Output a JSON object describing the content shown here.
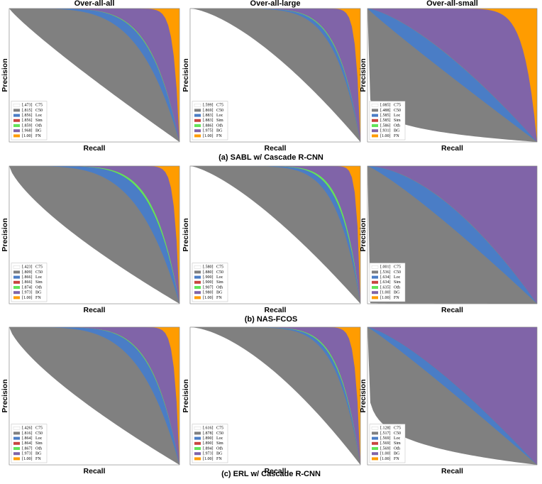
{
  "chart_data": [
    {
      "type": "area",
      "title": "Over-all-all",
      "xlabel": "Recall",
      "ylabel": "Precision",
      "series": [
        {
          "name": "C75",
          "color": "#ffffff",
          "values": [
            0.473
          ],
          "value_labels": [
            "[.473]"
          ]
        },
        {
          "name": "C50",
          "color": "#808080",
          "values": [
            0.815
          ],
          "value_labels": [
            "[.815]"
          ]
        },
        {
          "name": "Loc",
          "color": "#4a7dc6",
          "values": [
            0.856
          ],
          "value_labels": [
            "[.856]"
          ]
        },
        {
          "name": "Sim",
          "color": "#c8453f",
          "values": [
            0.856
          ],
          "value_labels": [
            "[.856]"
          ]
        },
        {
          "name": "Oth",
          "color": "#62e45a",
          "values": [
            0.859
          ],
          "value_labels": [
            "[.859]"
          ]
        },
        {
          "name": "BG",
          "color": "#8064a8",
          "values": [
            0.968
          ],
          "value_labels": [
            "[.968]"
          ]
        },
        {
          "name": "FN",
          "color": "#ff9c00",
          "values": [
            1.0
          ],
          "value_labels": [
            "[1.00]"
          ]
        }
      ]
    },
    {
      "type": "area",
      "title": "Over-all-large",
      "xlabel": "Recall",
      "ylabel": "Precision",
      "series": [
        {
          "name": "C75",
          "color": "#ffffff",
          "values": [
            0.599
          ],
          "value_labels": [
            "[.599]"
          ]
        },
        {
          "name": "C50",
          "color": "#808080",
          "values": [
            0.869
          ],
          "value_labels": [
            "[.869]"
          ]
        },
        {
          "name": "Loc",
          "color": "#4a7dc6",
          "values": [
            0.883
          ],
          "value_labels": [
            "[.883]"
          ]
        },
        {
          "name": "Sim",
          "color": "#c8453f",
          "values": [
            0.883
          ],
          "value_labels": [
            "[.883]"
          ]
        },
        {
          "name": "Oth",
          "color": "#62e45a",
          "values": [
            0.886
          ],
          "value_labels": [
            "[.886]"
          ]
        },
        {
          "name": "BG",
          "color": "#8064a8",
          "values": [
            0.975
          ],
          "value_labels": [
            "[.975]"
          ]
        },
        {
          "name": "FN",
          "color": "#ff9c00",
          "values": [
            1.0
          ],
          "value_labels": [
            "[1.00]"
          ]
        }
      ]
    },
    {
      "type": "area",
      "title": "Over-all-small",
      "xlabel": "Recall",
      "ylabel": "Precision",
      "series": [
        {
          "name": "C75",
          "color": "#ffffff",
          "values": [
            0.085
          ],
          "value_labels": [
            "[.085]"
          ]
        },
        {
          "name": "C50",
          "color": "#808080",
          "values": [
            0.488
          ],
          "value_labels": [
            "[.488]"
          ]
        },
        {
          "name": "Loc",
          "color": "#4a7dc6",
          "values": [
            0.585
          ],
          "value_labels": [
            "[.585]"
          ]
        },
        {
          "name": "Sim",
          "color": "#c8453f",
          "values": [
            0.585
          ],
          "value_labels": [
            "[.585]"
          ]
        },
        {
          "name": "Oth",
          "color": "#62e45a",
          "values": [
            0.586
          ],
          "value_labels": [
            "[.586]"
          ]
        },
        {
          "name": "BG",
          "color": "#8064a8",
          "values": [
            0.931
          ],
          "value_labels": [
            "[.931]"
          ]
        },
        {
          "name": "FN",
          "color": "#ff9c00",
          "values": [
            1.0
          ],
          "value_labels": [
            "[1.00]"
          ]
        }
      ]
    },
    {
      "type": "area",
      "xlabel": "Recall",
      "ylabel": "Precision",
      "series": [
        {
          "name": "C75",
          "color": "#ffffff",
          "values": [
            0.423
          ],
          "value_labels": [
            "[.423]"
          ]
        },
        {
          "name": "C50",
          "color": "#808080",
          "values": [
            0.809
          ],
          "value_labels": [
            "[.809]"
          ]
        },
        {
          "name": "Loc",
          "color": "#4a7dc6",
          "values": [
            0.866
          ],
          "value_labels": [
            "[.866]"
          ]
        },
        {
          "name": "Sim",
          "color": "#c8453f",
          "values": [
            0.866
          ],
          "value_labels": [
            "[.866]"
          ]
        },
        {
          "name": "Oth",
          "color": "#62e45a",
          "values": [
            0.874
          ],
          "value_labels": [
            "[.874]"
          ]
        },
        {
          "name": "BG",
          "color": "#8064a8",
          "values": [
            0.973
          ],
          "value_labels": [
            "[.973]"
          ]
        },
        {
          "name": "FN",
          "color": "#ff9c00",
          "values": [
            1.0
          ],
          "value_labels": [
            "[1.00]"
          ]
        }
      ]
    },
    {
      "type": "area",
      "xlabel": "Recall",
      "ylabel": "Precision",
      "series": [
        {
          "name": "C75",
          "color": "#ffffff",
          "values": [
            0.58
          ],
          "value_labels": [
            "[.580]"
          ]
        },
        {
          "name": "C50",
          "color": "#808080",
          "values": [
            0.88
          ],
          "value_labels": [
            "[.880]"
          ]
        },
        {
          "name": "Loc",
          "color": "#4a7dc6",
          "values": [
            0.9
          ],
          "value_labels": [
            "[.900]"
          ]
        },
        {
          "name": "Sim",
          "color": "#c8453f",
          "values": [
            0.9
          ],
          "value_labels": [
            "[.900]"
          ]
        },
        {
          "name": "Oth",
          "color": "#62e45a",
          "values": [
            0.907
          ],
          "value_labels": [
            "[.907]"
          ]
        },
        {
          "name": "BG",
          "color": "#8064a8",
          "values": [
            0.98
          ],
          "value_labels": [
            "[.980]"
          ]
        },
        {
          "name": "FN",
          "color": "#ff9c00",
          "values": [
            1.0
          ],
          "value_labels": [
            "[1.00]"
          ]
        }
      ]
    },
    {
      "type": "area",
      "xlabel": "Recall",
      "ylabel": "Precision",
      "series": [
        {
          "name": "C75",
          "color": "#ffffff",
          "values": [
            0.001
          ],
          "value_labels": [
            "[.001]"
          ]
        },
        {
          "name": "C50",
          "color": "#808080",
          "values": [
            0.536
          ],
          "value_labels": [
            "[.536]"
          ]
        },
        {
          "name": "Loc",
          "color": "#4a7dc6",
          "values": [
            0.634
          ],
          "value_labels": [
            "[.634]"
          ]
        },
        {
          "name": "Sim",
          "color": "#c8453f",
          "values": [
            0.634
          ],
          "value_labels": [
            "[.634]"
          ]
        },
        {
          "name": "Oth",
          "color": "#62e45a",
          "values": [
            0.635
          ],
          "value_labels": [
            "[.635]"
          ]
        },
        {
          "name": "BG",
          "color": "#8064a8",
          "values": [
            1.0
          ],
          "value_labels": [
            "[1.00]"
          ]
        },
        {
          "name": "FN",
          "color": "#ff9c00",
          "values": [
            1.0
          ],
          "value_labels": [
            "[1.00]"
          ]
        }
      ]
    },
    {
      "type": "area",
      "xlabel": "Recall",
      "ylabel": "Precision",
      "series": [
        {
          "name": "C75",
          "color": "#ffffff",
          "values": [
            0.426
          ],
          "value_labels": [
            "[.426]"
          ]
        },
        {
          "name": "C50",
          "color": "#808080",
          "values": [
            0.816
          ],
          "value_labels": [
            "[.816]"
          ]
        },
        {
          "name": "Loc",
          "color": "#4a7dc6",
          "values": [
            0.864
          ],
          "value_labels": [
            "[.864]"
          ]
        },
        {
          "name": "Sim",
          "color": "#c8453f",
          "values": [
            0.864
          ],
          "value_labels": [
            "[.864]"
          ]
        },
        {
          "name": "Oth",
          "color": "#62e45a",
          "values": [
            0.867
          ],
          "value_labels": [
            "[.867]"
          ]
        },
        {
          "name": "BG",
          "color": "#8064a8",
          "values": [
            0.973
          ],
          "value_labels": [
            "[.973]"
          ]
        },
        {
          "name": "FN",
          "color": "#ff9c00",
          "values": [
            1.0
          ],
          "value_labels": [
            "[1.00]"
          ]
        }
      ]
    },
    {
      "type": "area",
      "xlabel": "Recall",
      "ylabel": "Precision",
      "series": [
        {
          "name": "C75",
          "color": "#ffffff",
          "values": [
            0.616
          ],
          "value_labels": [
            "[.616]"
          ]
        },
        {
          "name": "C50",
          "color": "#808080",
          "values": [
            0.878
          ],
          "value_labels": [
            "[.878]"
          ]
        },
        {
          "name": "Loc",
          "color": "#4a7dc6",
          "values": [
            0.89
          ],
          "value_labels": [
            "[.890]"
          ]
        },
        {
          "name": "Sim",
          "color": "#c8453f",
          "values": [
            0.89
          ],
          "value_labels": [
            "[.890]"
          ]
        },
        {
          "name": "Oth",
          "color": "#62e45a",
          "values": [
            0.894
          ],
          "value_labels": [
            "[.894]"
          ]
        },
        {
          "name": "BG",
          "color": "#8064a8",
          "values": [
            0.973
          ],
          "value_labels": [
            "[.973]"
          ]
        },
        {
          "name": "FN",
          "color": "#ff9c00",
          "values": [
            1.0
          ],
          "value_labels": [
            "[1.00]"
          ]
        }
      ]
    },
    {
      "type": "area",
      "xlabel": "Recall",
      "ylabel": "Precision",
      "series": [
        {
          "name": "C75",
          "color": "#ffffff",
          "values": [
            0.128
          ],
          "value_labels": [
            "[.128]"
          ]
        },
        {
          "name": "C50",
          "color": "#808080",
          "values": [
            0.517
          ],
          "value_labels": [
            "[.517]"
          ]
        },
        {
          "name": "Loc",
          "color": "#4a7dc6",
          "values": [
            0.569
          ],
          "value_labels": [
            "[.569]"
          ]
        },
        {
          "name": "Sim",
          "color": "#c8453f",
          "values": [
            0.569
          ],
          "value_labels": [
            "[.569]"
          ]
        },
        {
          "name": "Oth",
          "color": "#62e45a",
          "values": [
            0.569
          ],
          "value_labels": [
            "[.569]"
          ]
        },
        {
          "name": "BG",
          "color": "#8064a8",
          "values": [
            1.0
          ],
          "value_labels": [
            "[1.00]"
          ]
        },
        {
          "name": "FN",
          "color": "#ff9c00",
          "values": [
            1.0
          ],
          "value_labels": [
            "[1.00]"
          ]
        }
      ]
    }
  ],
  "captions": [
    "(a) SABL w/ Cascade R-CNN",
    "(b) NAS-FCOS",
    "(c) ERL w/ Cascade R-CNN"
  ]
}
